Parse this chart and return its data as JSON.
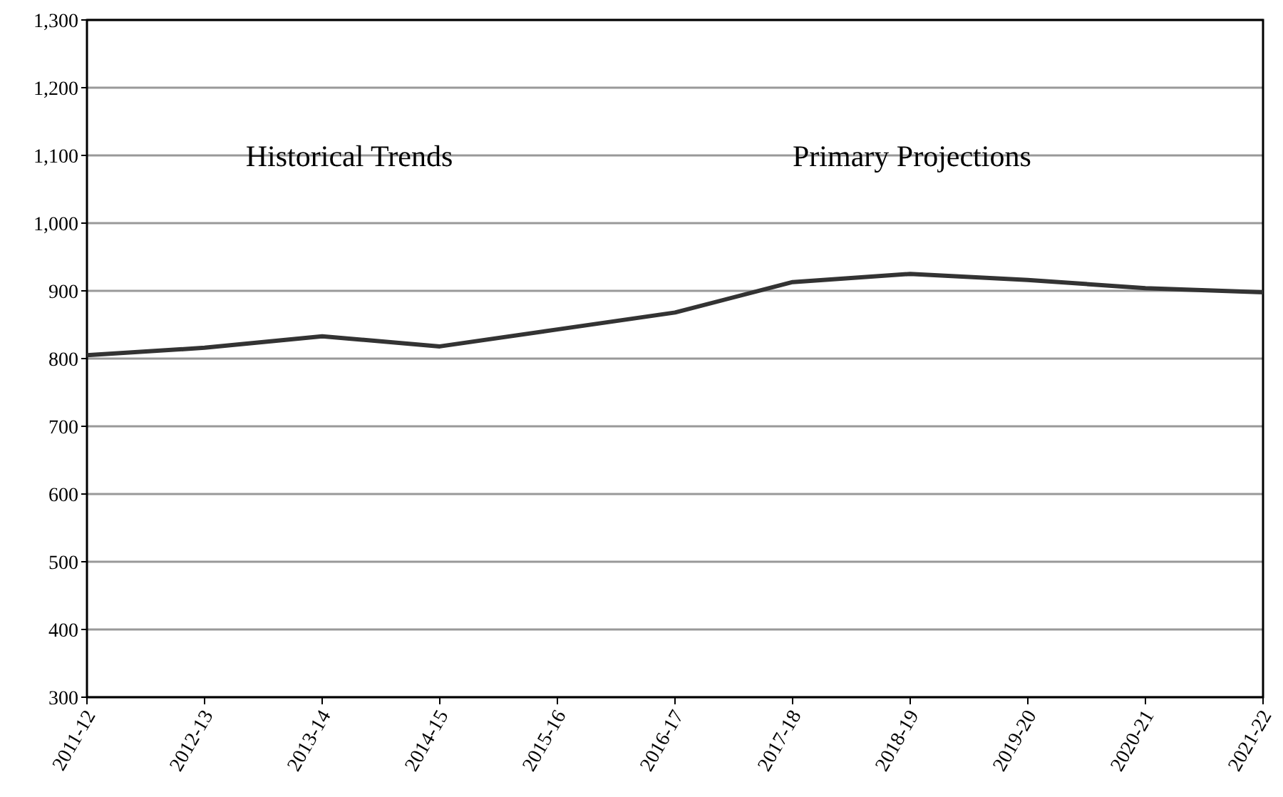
{
  "chart_data": {
    "type": "line",
    "categories": [
      "2011-12",
      "2012-13",
      "2013-14",
      "2014-15",
      "2015-16",
      "2016-17",
      "2017-18",
      "2018-19",
      "2019-20",
      "2020-21",
      "2021-22"
    ],
    "series": [
      {
        "color": "#333333",
        "values": [
          805,
          816,
          833,
          818,
          843,
          868,
          913,
          925,
          916,
          904,
          898
        ]
      }
    ],
    "ylim": [
      300,
      1300
    ],
    "yticks": [
      {
        "value": 300,
        "label": "300"
      },
      {
        "value": 400,
        "label": "400"
      },
      {
        "value": 500,
        "label": "500"
      },
      {
        "value": 600,
        "label": "600"
      },
      {
        "value": 700,
        "label": "700"
      },
      {
        "value": 800,
        "label": "800"
      },
      {
        "value": 900,
        "label": "900"
      },
      {
        "value": 1000,
        "label": "1,000"
      },
      {
        "value": 1100,
        "label": "1,100"
      },
      {
        "value": 1200,
        "label": "1,200"
      },
      {
        "value": 1300,
        "label": "1,300"
      }
    ],
    "grid": "y",
    "marker": "none",
    "line_style": "solid",
    "annotations": [
      "Historical Trends",
      "Primary Projections"
    ]
  }
}
